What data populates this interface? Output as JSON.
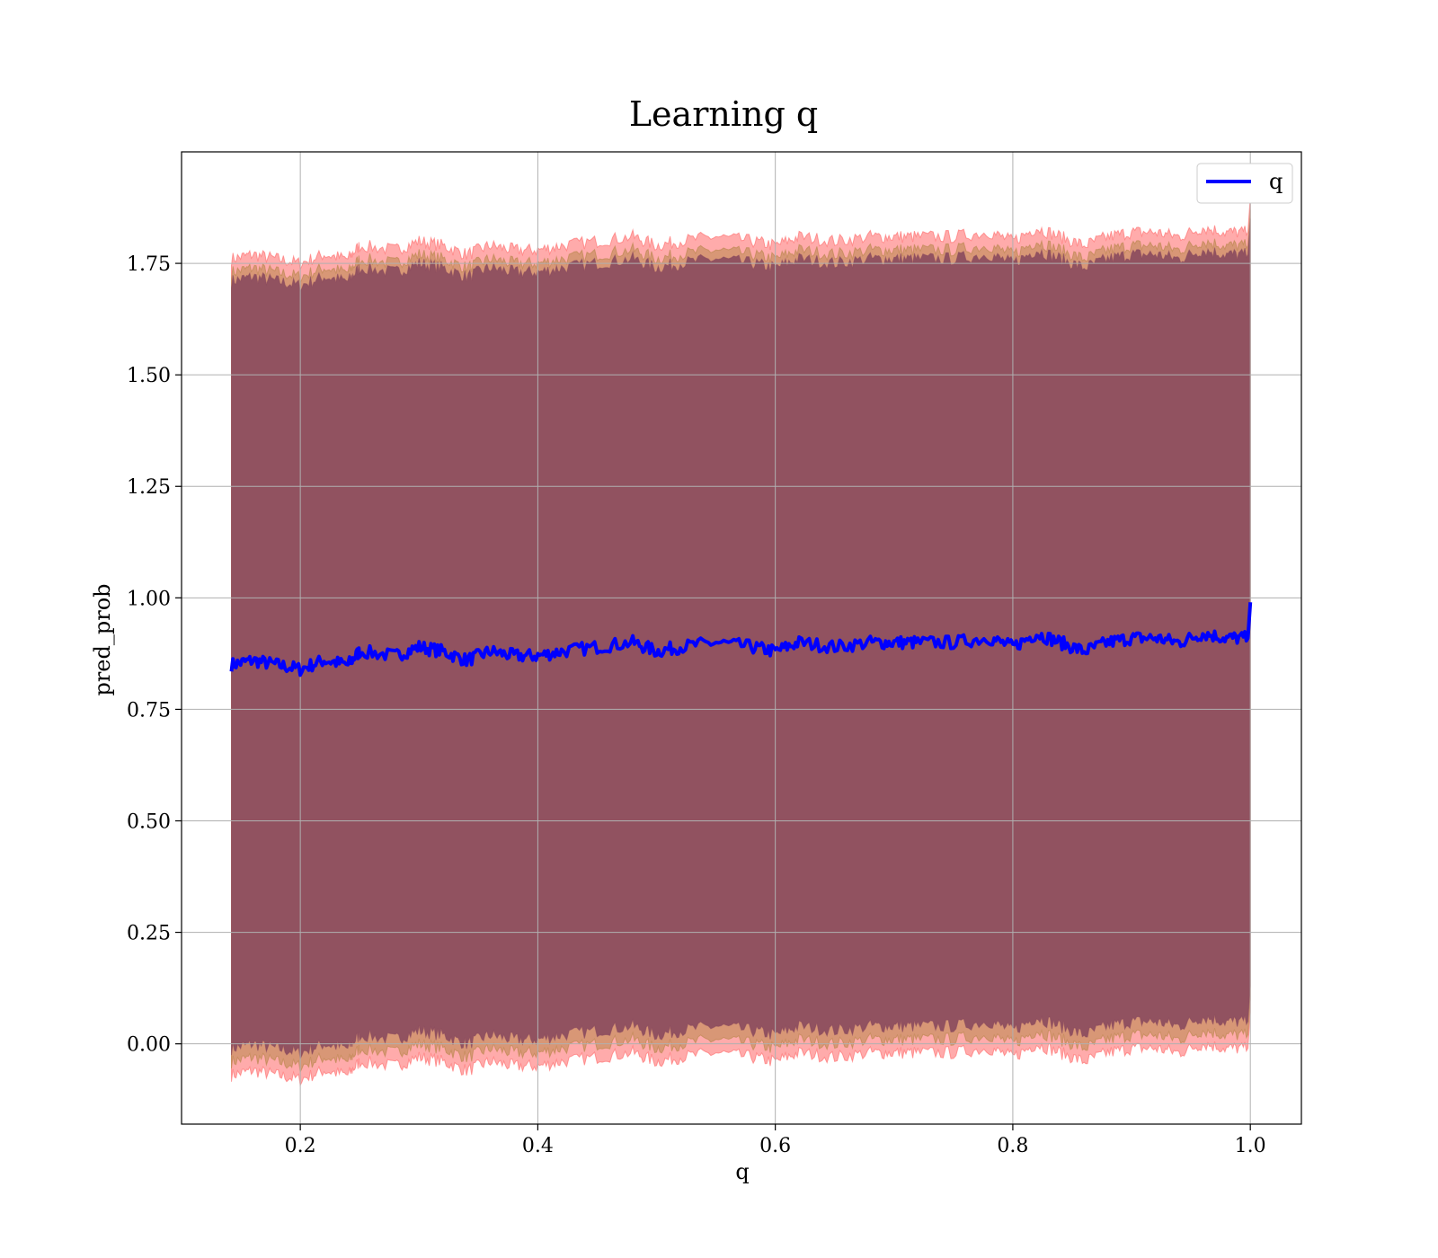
{
  "chart_data": {
    "type": "line",
    "title": "Learning q",
    "xlabel": "q",
    "ylabel": "pred_prob",
    "xlim": [
      0.1,
      1.043
    ],
    "ylim": [
      -0.18,
      2.0
    ],
    "xticks": [
      0.2,
      0.4,
      0.6,
      0.8,
      1.0
    ],
    "xtick_labels": [
      "0.2",
      "0.4",
      "0.6",
      "0.8",
      "1.0"
    ],
    "yticks": [
      0.0,
      0.25,
      0.5,
      0.75,
      1.0,
      1.25,
      1.5,
      1.75
    ],
    "ytick_labels": [
      "0.00",
      "0.25",
      "0.50",
      "0.75",
      "1.00",
      "1.25",
      "1.50",
      "1.75"
    ],
    "grid": true,
    "legend": {
      "position": "top-right",
      "entries": [
        "q"
      ]
    },
    "series": [
      {
        "name": "q",
        "color": "#0000ff",
        "x": [
          0.142,
          0.16,
          0.18,
          0.2,
          0.22,
          0.24,
          0.25,
          0.28,
          0.3,
          0.32,
          0.34,
          0.36,
          0.38,
          0.4,
          0.42,
          0.45,
          0.48,
          0.5,
          0.52,
          0.55,
          0.58,
          0.6,
          0.62,
          0.65,
          0.68,
          0.7,
          0.72,
          0.75,
          0.78,
          0.8,
          0.82,
          0.84,
          0.86,
          0.88,
          0.9,
          0.92,
          0.94,
          0.96,
          0.98,
          0.998,
          1.0
        ],
        "y": [
          0.85,
          0.86,
          0.85,
          0.84,
          0.86,
          0.85,
          0.88,
          0.87,
          0.89,
          0.88,
          0.86,
          0.88,
          0.87,
          0.87,
          0.88,
          0.89,
          0.9,
          0.88,
          0.89,
          0.9,
          0.89,
          0.88,
          0.9,
          0.89,
          0.9,
          0.9,
          0.9,
          0.9,
          0.91,
          0.89,
          0.92,
          0.9,
          0.88,
          0.9,
          0.91,
          0.91,
          0.9,
          0.92,
          0.91,
          0.91,
          0.99
        ]
      }
    ],
    "bands": [
      {
        "color": "#ff6666",
        "offset_upper": 0.91,
        "offset_lower": -0.92
      },
      {
        "color": "#b8864a",
        "offset_upper": 0.88,
        "offset_lower": -0.89
      },
      {
        "color": "#8a4a5e",
        "offset_upper": 0.86,
        "offset_lower": -0.86
      }
    ],
    "colors": {
      "line": "#0000ff",
      "upper_band": "#ff8a8a",
      "mid_band": "#c08a6a",
      "core_band": "#a07078",
      "grid": "#b0b0b0"
    }
  }
}
